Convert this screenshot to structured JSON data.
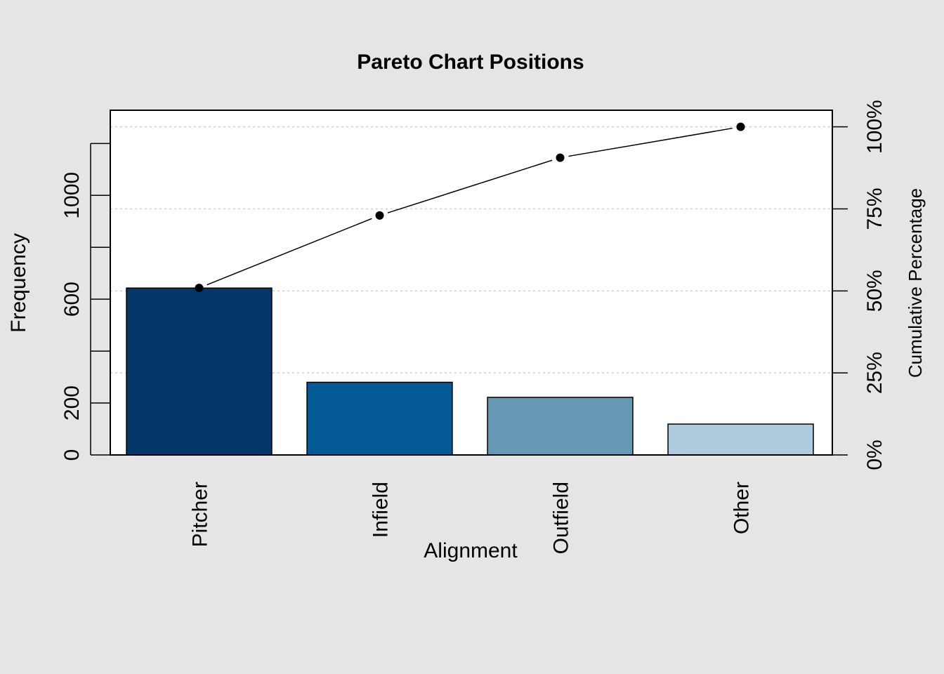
{
  "chart_data": {
    "type": "bar",
    "title": "Pareto Chart Positions",
    "xlabel": "Alignment",
    "ylabel": "Frequency",
    "ylabel_right": "Cumulative Percentage",
    "categories": [
      "Pitcher",
      "Infield",
      "Outfield",
      "Other"
    ],
    "values": [
      643,
      280,
      222,
      119
    ],
    "colors": [
      "#03376a",
      "#025994",
      "#6699b5",
      "#b1cbde"
    ],
    "cumulative_percent": [
      50.9,
      73.0,
      90.6,
      100.0
    ],
    "ylim": [
      0,
      1328
    ],
    "y_ticks": [
      0,
      200,
      400,
      600,
      800,
      1000,
      1200
    ],
    "y_tick_labels": [
      "0",
      "200",
      "",
      "600",
      "",
      "1000",
      ""
    ],
    "y2_ticks": [
      0,
      25,
      50,
      75,
      100
    ],
    "y2_tick_labels": [
      "0%",
      "25%",
      "50%",
      "75%",
      "100%"
    ],
    "grid": true
  }
}
